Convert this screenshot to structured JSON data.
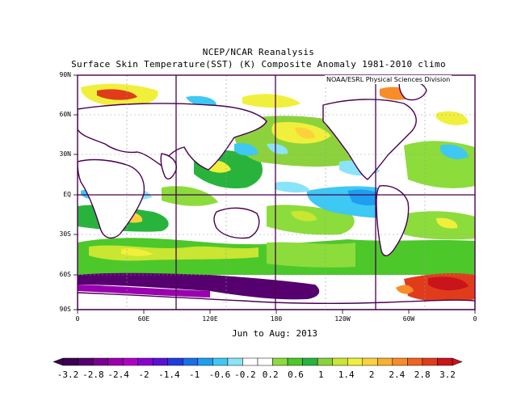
{
  "title": "NCEP/NCAR Reanalysis",
  "subtitle": "Surface Skin Temperature(SST) (K) Composite Anomaly 1981-2010 climo",
  "period": "Jun to Aug: 2013",
  "credit": "NOAA/ESRL Physical Sciences Division",
  "lat_labels": [
    "90N",
    "60N",
    "30N",
    "EQ",
    "30S",
    "60S",
    "90S"
  ],
  "lon_labels": [
    "0",
    "60E",
    "120E",
    "180",
    "120W",
    "60W",
    "0"
  ],
  "colorbar": {
    "labels": [
      "-3.2",
      "-2.8",
      "-2.4",
      "-2",
      "-1.4",
      "-1",
      "-0.6",
      "-0.2",
      "0.2",
      "0.6",
      "1",
      "1.4",
      "2",
      "2.4",
      "2.8",
      "3.2"
    ],
    "colors": [
      "#3b0050",
      "#55006e",
      "#7a0090",
      "#9a00b0",
      "#b000c8",
      "#8a00d0",
      "#5a10d8",
      "#1f3cdc",
      "#1a6ee8",
      "#1e9ef0",
      "#3ec8f4",
      "#8ae4f8",
      "#ffffff",
      "#ffffff",
      "#8cdc3c",
      "#4cc82a",
      "#28b43c",
      "#8cd23c",
      "#c8e632",
      "#f0f03c",
      "#fcd23c",
      "#f8b030",
      "#f88c28",
      "#f06420",
      "#e03c1c",
      "#c8141a"
    ]
  },
  "map_colors": {
    "ocean_neutral": "#ffffff",
    "land": "#ffffff",
    "coast": "#4a0050",
    "frame": "#4a0050",
    "grid": "#4a0050"
  }
}
